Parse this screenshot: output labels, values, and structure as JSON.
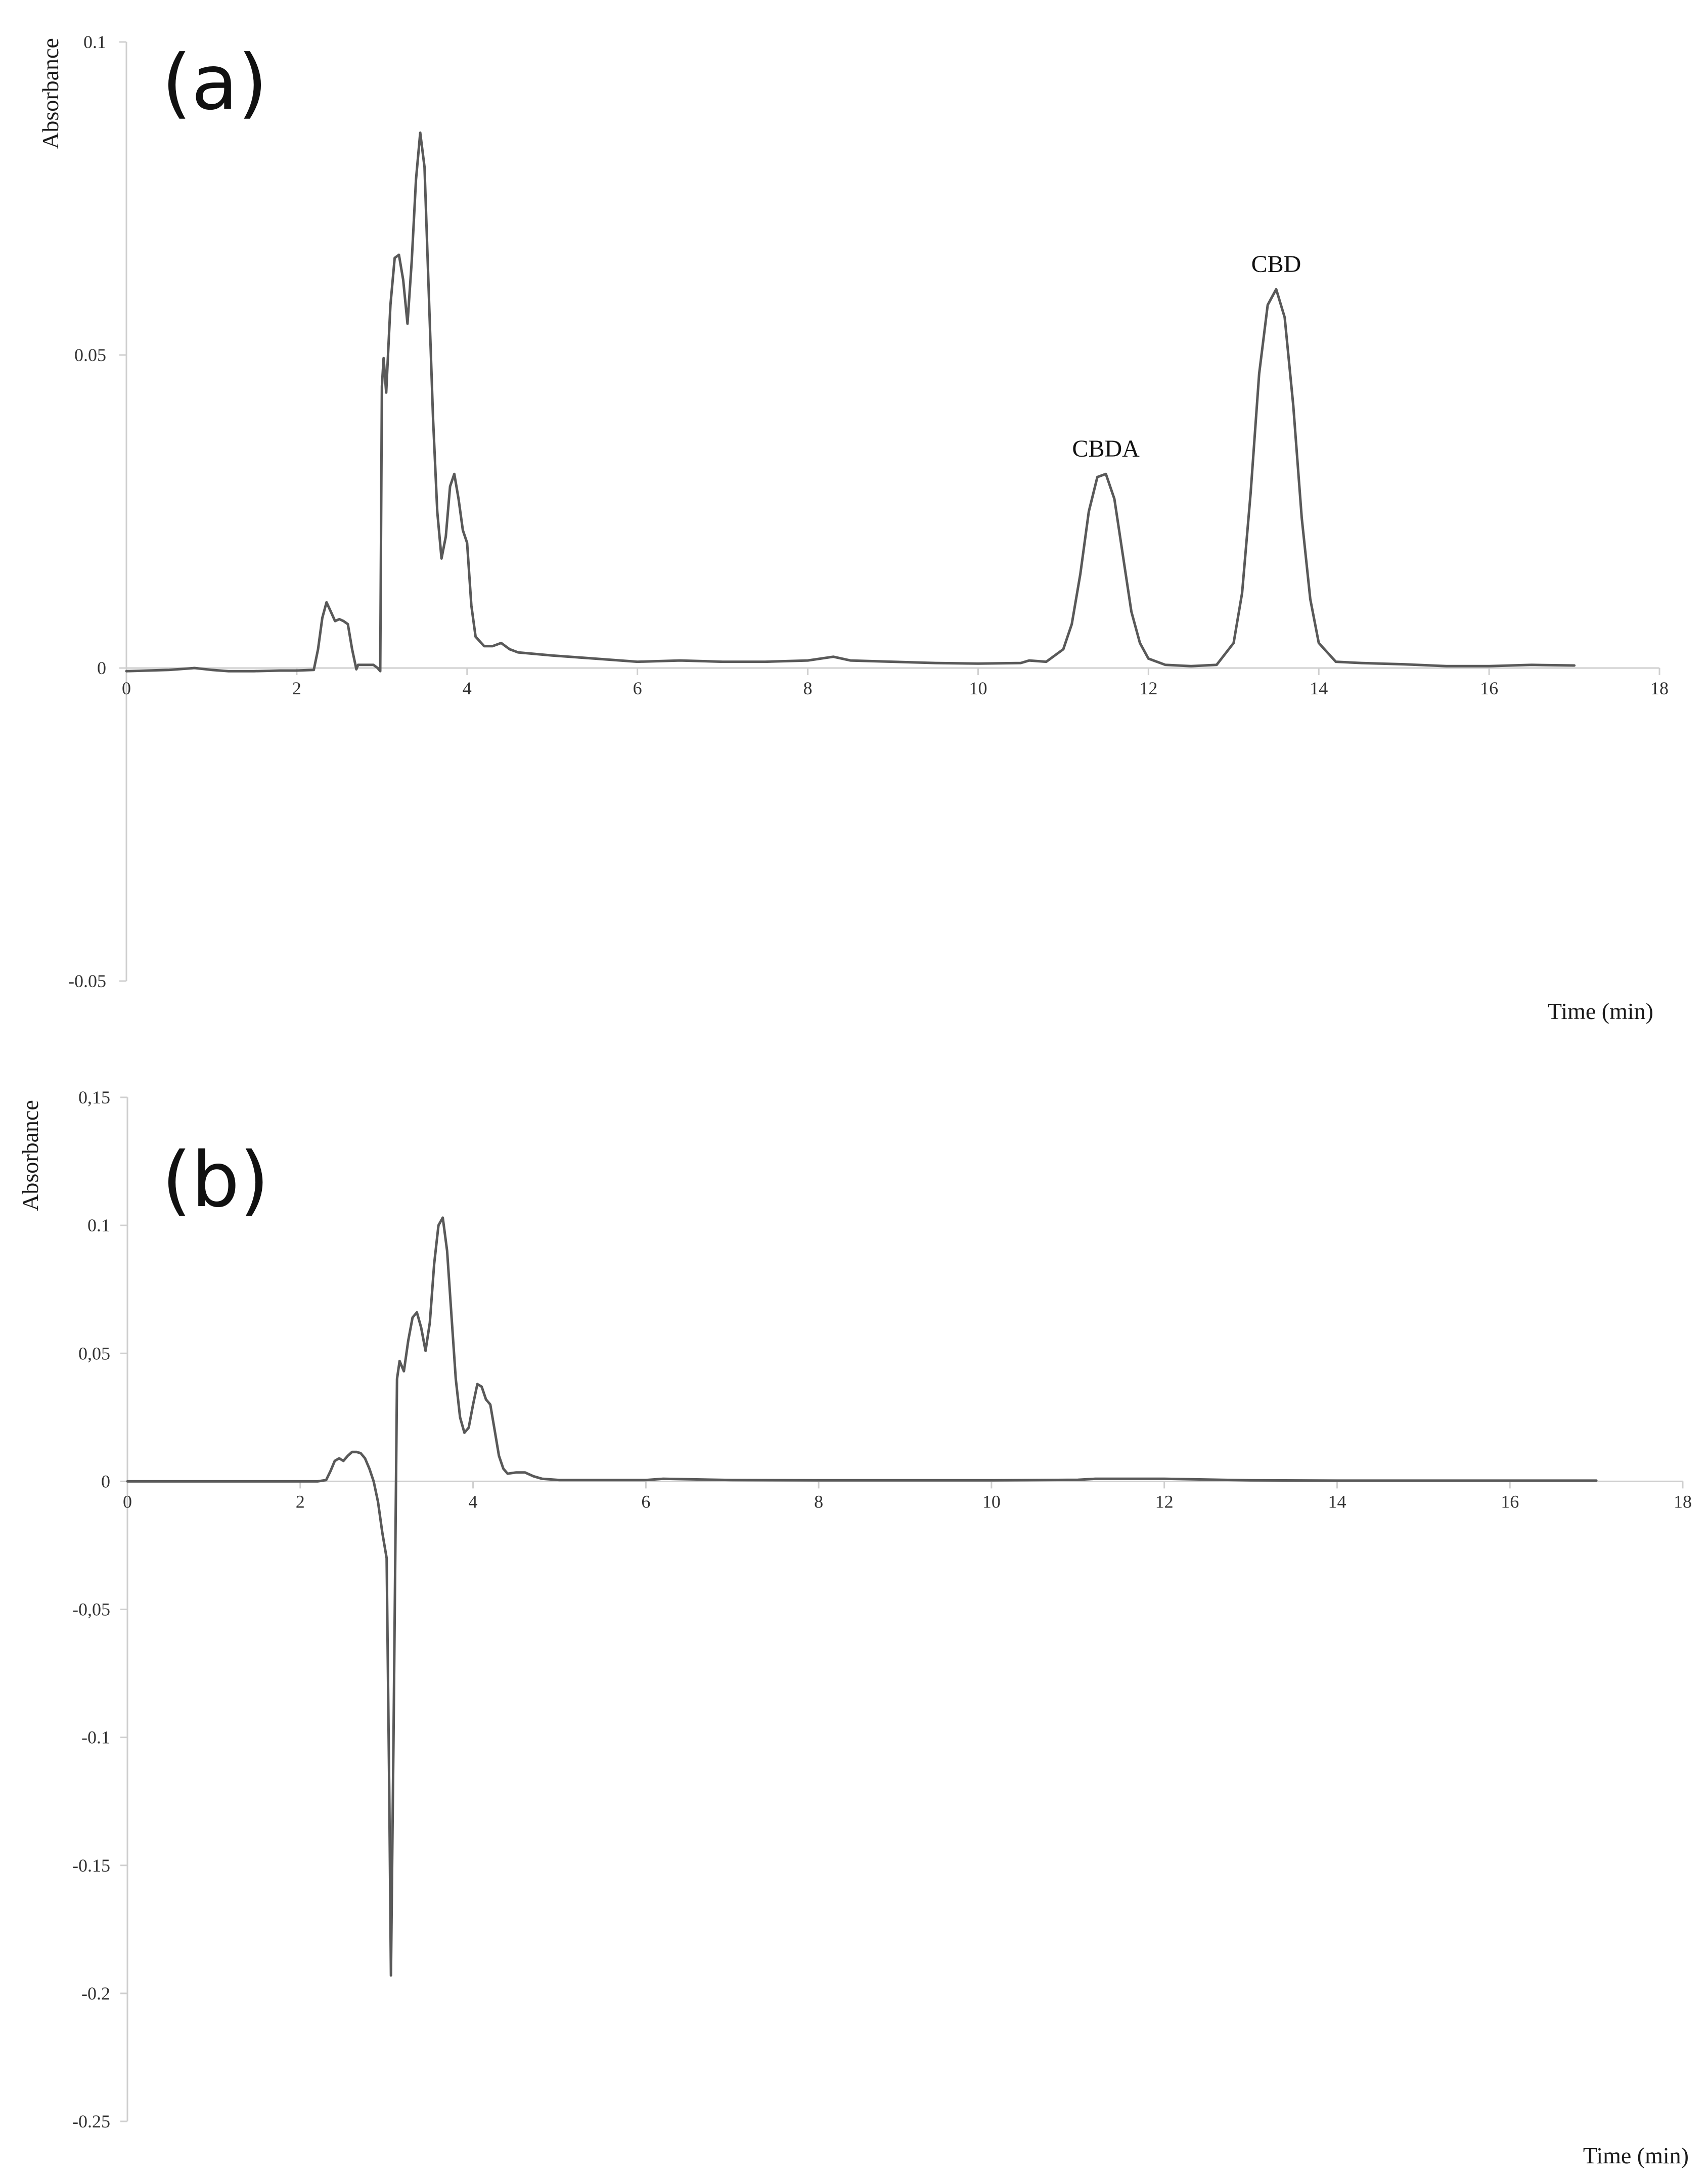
{
  "chart_data": [
    {
      "type": "line",
      "panel_label": "(a)",
      "ylabel": "Absorbance",
      "xlabel": "Time (min)",
      "xlim": [
        0,
        18
      ],
      "ylim": [
        -0.05,
        0.1
      ],
      "x_ticks": [
        0,
        2,
        4,
        6,
        8,
        10,
        12,
        14,
        16,
        18
      ],
      "x_tick_labels": [
        "0",
        "2",
        "4",
        "6",
        "8",
        "10",
        "12",
        "14",
        "16",
        "18"
      ],
      "y_ticks": [
        -0.05,
        0,
        0.05,
        0.1
      ],
      "y_tick_labels": [
        "-0.05",
        "0",
        "0.05",
        "0.1"
      ],
      "grid": false,
      "annotations": [
        {
          "text": "CBDA",
          "x": 11.5,
          "y": 0.0315
        },
        {
          "text": "CBD",
          "x": 13.5,
          "y": 0.061
        }
      ],
      "series": [
        {
          "x": [
            0,
            0.5,
            0.8,
            1.0,
            1.2,
            1.5,
            1.8,
            2.0,
            2.2,
            2.25,
            2.3,
            2.35,
            2.4,
            2.45,
            2.5,
            2.55,
            2.6,
            2.65,
            2.7,
            2.72,
            2.8,
            2.9,
            2.95,
            2.98,
            3.0,
            3.02,
            3.05,
            3.1,
            3.15,
            3.2,
            3.25,
            3.3,
            3.35,
            3.4,
            3.45,
            3.5,
            3.55,
            3.6,
            3.65,
            3.7,
            3.75,
            3.8,
            3.85,
            3.9,
            3.95,
            4.0,
            4.05,
            4.1,
            4.2,
            4.3,
            4.4,
            4.5,
            4.6,
            5.0,
            5.5,
            6.0,
            6.5,
            7.0,
            7.5,
            8.0,
            8.3,
            8.5,
            9.0,
            9.5,
            10.0,
            10.5,
            10.6,
            10.8,
            11.0,
            11.1,
            11.2,
            11.3,
            11.4,
            11.5,
            11.6,
            11.7,
            11.8,
            11.9,
            12.0,
            12.2,
            12.5,
            12.8,
            13.0,
            13.1,
            13.2,
            13.3,
            13.4,
            13.5,
            13.6,
            13.7,
            13.8,
            13.9,
            14.0,
            14.2,
            14.5,
            15.0,
            15.5,
            16.0,
            16.5,
            17.0
          ],
          "y": [
            -0.0005,
            -0.0003,
            0.0,
            -0.0003,
            -0.0005,
            -0.0005,
            -0.0004,
            -0.0004,
            -0.0003,
            0.003,
            0.008,
            0.0105,
            0.009,
            0.0075,
            0.0078,
            0.0075,
            0.007,
            0.003,
            -0.0002,
            0.0005,
            0.0005,
            0.0005,
            0.0,
            -0.0005,
            0.045,
            0.0495,
            0.044,
            0.058,
            0.0655,
            0.066,
            0.062,
            0.055,
            0.065,
            0.078,
            0.0855,
            0.08,
            0.06,
            0.04,
            0.025,
            0.0175,
            0.021,
            0.029,
            0.031,
            0.027,
            0.022,
            0.02,
            0.01,
            0.005,
            0.0035,
            0.0035,
            0.004,
            0.003,
            0.0025,
            0.002,
            0.0015,
            0.001,
            0.0012,
            0.001,
            0.001,
            0.0012,
            0.0018,
            0.0012,
            0.001,
            0.0008,
            0.0007,
            0.0008,
            0.0012,
            0.001,
            0.003,
            0.007,
            0.015,
            0.025,
            0.0305,
            0.031,
            0.027,
            0.018,
            0.009,
            0.004,
            0.0015,
            0.0005,
            0.0003,
            0.0005,
            0.004,
            0.012,
            0.028,
            0.047,
            0.058,
            0.0605,
            0.056,
            0.042,
            0.024,
            0.011,
            0.004,
            0.001,
            0.0008,
            0.0006,
            0.0003,
            0.0003,
            0.0005,
            0.0004
          ]
        }
      ]
    },
    {
      "type": "line",
      "panel_label": "(b)",
      "ylabel": "Absorbance",
      "xlabel": "Time (min)",
      "xlim": [
        0,
        18
      ],
      "ylim": [
        -0.25,
        0.15
      ],
      "x_ticks": [
        0,
        2,
        4,
        6,
        8,
        10,
        12,
        14,
        16,
        18
      ],
      "x_tick_labels": [
        "0",
        "2",
        "4",
        "6",
        "8",
        "10",
        "12",
        "14",
        "16",
        "18"
      ],
      "y_ticks": [
        -0.25,
        -0.2,
        -0.15,
        -0.1,
        -0.05,
        0,
        0.05,
        0.1,
        0.15
      ],
      "y_tick_labels": [
        "-0.25",
        "-0.2",
        "-0.15",
        "-0.1",
        "-0,05",
        "0",
        "0,05",
        "0.1",
        "0,15"
      ],
      "grid": false,
      "annotations": [],
      "series": [
        {
          "x": [
            0,
            1.0,
            2.0,
            2.2,
            2.3,
            2.35,
            2.4,
            2.45,
            2.5,
            2.55,
            2.6,
            2.65,
            2.7,
            2.75,
            2.8,
            2.85,
            2.9,
            2.95,
            3.0,
            3.03,
            3.05,
            3.08,
            3.12,
            3.15,
            3.2,
            3.25,
            3.3,
            3.35,
            3.4,
            3.45,
            3.5,
            3.55,
            3.6,
            3.65,
            3.7,
            3.75,
            3.8,
            3.85,
            3.9,
            3.95,
            4.0,
            4.05,
            4.1,
            4.15,
            4.2,
            4.25,
            4.3,
            4.35,
            4.4,
            4.5,
            4.6,
            4.7,
            4.8,
            5.0,
            5.5,
            6.0,
            6.2,
            7.0,
            8.0,
            9.0,
            10.0,
            11.0,
            11.2,
            12.0,
            13.0,
            14.0,
            15.0,
            16.0,
            17.0
          ],
          "y": [
            0,
            0,
            0,
            0,
            0.0005,
            0.004,
            0.008,
            0.009,
            0.008,
            0.01,
            0.0115,
            0.0115,
            0.011,
            0.009,
            0.005,
            0.0,
            -0.008,
            -0.02,
            -0.03,
            -0.12,
            -0.193,
            -0.1,
            0.04,
            0.047,
            0.043,
            0.055,
            0.064,
            0.066,
            0.06,
            0.051,
            0.062,
            0.085,
            0.1,
            0.103,
            0.09,
            0.065,
            0.04,
            0.025,
            0.019,
            0.021,
            0.03,
            0.038,
            0.037,
            0.032,
            0.03,
            0.02,
            0.01,
            0.005,
            0.003,
            0.0035,
            0.0035,
            0.002,
            0.001,
            0.0005,
            0.0005,
            0.0005,
            0.001,
            0.0005,
            0.0004,
            0.0004,
            0.0004,
            0.0006,
            0.001,
            0.001,
            0.0004,
            0.0003,
            0.0003,
            0.0003,
            0.0003
          ]
        }
      ]
    }
  ]
}
